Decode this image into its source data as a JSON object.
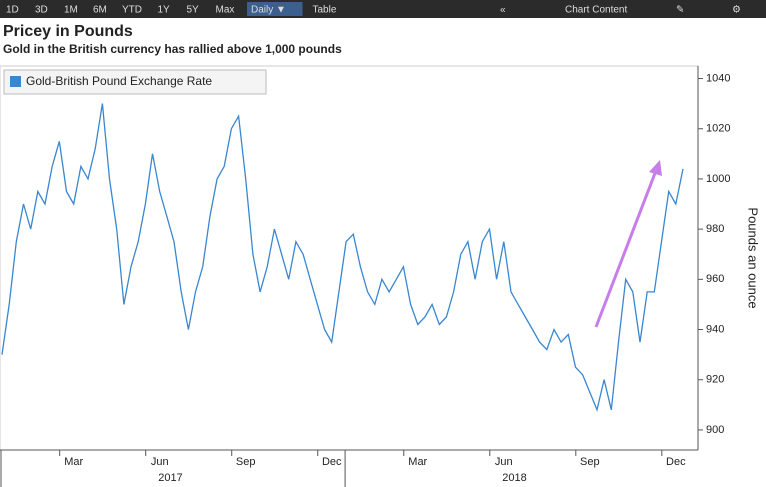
{
  "toolbar": {
    "buttons": [
      "1D",
      "3D",
      "1M",
      "6M",
      "YTD",
      "1Y",
      "5Y",
      "Max",
      "Daily ▼",
      "Table"
    ],
    "chart_content": "Chart Content"
  },
  "chart_data": {
    "type": "line",
    "title": "Pricey in Pounds",
    "subtitle": "Gold in the British currency has rallied above 1,000 pounds",
    "y_axis_label": "Pounds an ounce",
    "categories": [
      null,
      null,
      null,
      null,
      null,
      null,
      null,
      null,
      null,
      null,
      "Mar",
      null,
      null,
      null,
      null,
      null,
      null,
      null,
      null,
      null,
      null,
      null,
      "Jun",
      null,
      null,
      null,
      null,
      null,
      null,
      null,
      null,
      null,
      null,
      null,
      "Sep",
      null,
      null,
      null,
      null,
      null,
      null,
      null,
      null,
      null,
      null,
      null,
      "Dec",
      null,
      null,
      null,
      null,
      null,
      null,
      null,
      null,
      null,
      null,
      null,
      "Mar",
      null,
      null,
      null,
      null,
      null,
      null,
      null,
      null,
      null,
      null,
      null,
      "Jun",
      null,
      null,
      null,
      null,
      null,
      null,
      null,
      null,
      null,
      null,
      null,
      "Sep",
      null,
      null,
      null,
      null,
      null,
      null,
      null,
      null,
      null,
      null,
      null,
      "Dec",
      null
    ],
    "years": [
      "2017",
      "2018"
    ],
    "series": [
      {
        "name": "Gold-British Pound Exchange Rate",
        "color": "#3a86d0",
        "values": [
          930,
          950,
          975,
          990,
          980,
          995,
          990,
          1005,
          1015,
          995,
          990,
          1005,
          1000,
          1012,
          1030,
          1000,
          980,
          950,
          965,
          975,
          990,
          1010,
          995,
          985,
          975,
          955,
          940,
          955,
          965,
          985,
          1000,
          1005,
          1020,
          1025,
          1000,
          970,
          955,
          965,
          980,
          970,
          960,
          975,
          970,
          960,
          950,
          940,
          935,
          955,
          975,
          978,
          965,
          955,
          950,
          960,
          955,
          960,
          965,
          950,
          942,
          945,
          950,
          942,
          945,
          955,
          970,
          975,
          960,
          975,
          980,
          960,
          975,
          955,
          950,
          945,
          940,
          935,
          932,
          940,
          935,
          938,
          925,
          922,
          915,
          908,
          920,
          908,
          935,
          960,
          955,
          935,
          955,
          955,
          975,
          995,
          990,
          1004
        ]
      }
    ],
    "ylim": [
      892,
      1045
    ],
    "yticks": [
      900,
      920,
      940,
      960,
      980,
      1000,
      1020,
      1040
    ],
    "grid": false,
    "legend": "top-left"
  }
}
